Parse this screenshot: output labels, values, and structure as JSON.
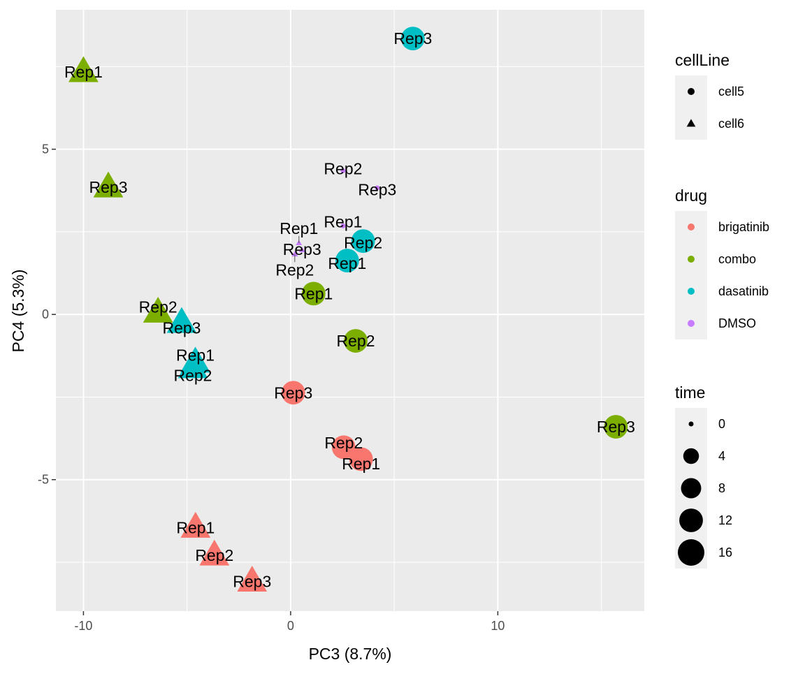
{
  "chart_data": {
    "type": "scatter",
    "xlabel": "PC3 (8.7%)",
    "ylabel": "PC4 (5.3%)",
    "xlim": [
      -11.33,
      17.07
    ],
    "ylim": [
      -8.98,
      9.22
    ],
    "xticks": [
      -10,
      0,
      10
    ],
    "yticks": [
      -5,
      0,
      5
    ],
    "xtick_labels": [
      "-10",
      "0",
      "10"
    ],
    "ytick_labels": [
      "-5",
      "0",
      "5"
    ],
    "grid": true,
    "legend_position": "right",
    "colors": {
      "brigatinib": "#F8766D",
      "combo": "#7CAE00",
      "dasatinib": "#00BFC4",
      "DMSO": "#C77CFF"
    },
    "legends": {
      "cellLine": {
        "title": "cellLine",
        "entries": [
          "cell5",
          "cell6"
        ]
      },
      "drug": {
        "title": "drug",
        "entries": [
          "brigatinib",
          "combo",
          "dasatinib",
          "DMSO"
        ]
      },
      "time": {
        "title": "time",
        "entries": [
          "0",
          "4",
          "8",
          "12",
          "16"
        ]
      }
    },
    "points": [
      {
        "x": -10.0,
        "y": 7.34,
        "drug": "combo",
        "cellLine": "cell6",
        "time": 12,
        "label": "Rep1"
      },
      {
        "x": -8.8,
        "y": 3.85,
        "drug": "combo",
        "cellLine": "cell6",
        "time": 12,
        "label": "Rep3"
      },
      {
        "x": -6.4,
        "y": 0.06,
        "drug": "combo",
        "cellLine": "cell6",
        "time": 12,
        "label": "Rep2"
      },
      {
        "x": -5.26,
        "y": -0.25,
        "drug": "dasatinib",
        "cellLine": "cell6",
        "time": 12,
        "label": "Rep3"
      },
      {
        "x": -4.6,
        "y": -1.45,
        "drug": "dasatinib",
        "cellLine": "cell6",
        "time": 12,
        "label": "Rep1"
      },
      {
        "x": -4.72,
        "y": -1.62,
        "drug": "dasatinib",
        "cellLine": "cell6",
        "time": 12,
        "label": "Rep2"
      },
      {
        "x": -4.59,
        "y": -6.45,
        "drug": "brigatinib",
        "cellLine": "cell6",
        "time": 12,
        "label": "Rep1"
      },
      {
        "x": -3.68,
        "y": -7.29,
        "drug": "brigatinib",
        "cellLine": "cell6",
        "time": 12,
        "label": "Rep2"
      },
      {
        "x": -1.86,
        "y": -8.08,
        "drug": "brigatinib",
        "cellLine": "cell6",
        "time": 12,
        "label": "Rep3"
      },
      {
        "x": 5.9,
        "y": 8.35,
        "drug": "dasatinib",
        "cellLine": "cell5",
        "time": 12,
        "label": "Rep3"
      },
      {
        "x": 2.53,
        "y": 4.35,
        "drug": "DMSO",
        "cellLine": "cell5",
        "time": 0,
        "label": "Rep2"
      },
      {
        "x": 4.18,
        "y": 3.83,
        "drug": "DMSO",
        "cellLine": "cell5",
        "time": 0,
        "label": "Rep3"
      },
      {
        "x": 2.53,
        "y": 2.68,
        "drug": "DMSO",
        "cellLine": "cell5",
        "time": 0,
        "label": "Rep1"
      },
      {
        "x": 0.4,
        "y": 2.16,
        "drug": "DMSO",
        "cellLine": "cell6",
        "time": 0,
        "label": "Rep1"
      },
      {
        "x": 0.55,
        "y": 1.95,
        "drug": "DMSO",
        "cellLine": "cell6",
        "time": 0,
        "label": "Rep3"
      },
      {
        "x": 0.2,
        "y": 1.82,
        "drug": "DMSO",
        "cellLine": "cell6",
        "time": 0,
        "label": "Rep2"
      },
      {
        "x": 3.5,
        "y": 2.22,
        "drug": "dasatinib",
        "cellLine": "cell5",
        "time": 12,
        "label": "Rep2"
      },
      {
        "x": 2.73,
        "y": 1.63,
        "drug": "dasatinib",
        "cellLine": "cell5",
        "time": 12,
        "label": "Rep1"
      },
      {
        "x": 1.11,
        "y": 0.63,
        "drug": "combo",
        "cellLine": "cell5",
        "time": 12,
        "label": "Rep1"
      },
      {
        "x": 3.14,
        "y": -0.8,
        "drug": "combo",
        "cellLine": "cell5",
        "time": 12,
        "label": "Rep2"
      },
      {
        "x": 0.13,
        "y": -2.37,
        "drug": "brigatinib",
        "cellLine": "cell5",
        "time": 12,
        "label": "Rep3"
      },
      {
        "x": 2.56,
        "y": -4.02,
        "drug": "brigatinib",
        "cellLine": "cell5",
        "time": 12,
        "label": "Rep2"
      },
      {
        "x": 3.4,
        "y": -4.38,
        "drug": "brigatinib",
        "cellLine": "cell5",
        "time": 12,
        "label": "Rep1"
      },
      {
        "x": 15.7,
        "y": -3.4,
        "drug": "combo",
        "cellLine": "cell5",
        "time": 12,
        "label": "Rep3"
      }
    ]
  }
}
